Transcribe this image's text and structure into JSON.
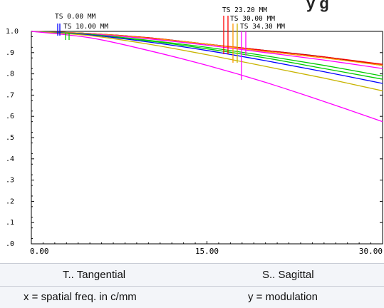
{
  "header_partial_title": "y   g",
  "legend": {
    "ts_label": "T.. Tangential",
    "s_label": "S.. Sagittal",
    "x_label": "x = spatial freq. in c/mm",
    "y_label": "y = modulation"
  },
  "chart_data": {
    "type": "line",
    "xlabel": "",
    "ylabel": "",
    "xlim": [
      0,
      30
    ],
    "ylim": [
      0,
      1
    ],
    "x_ticks": [
      "0.00",
      "15.00",
      "30.00"
    ],
    "y_ticks": [
      ".0",
      ".1",
      ".2",
      ".3",
      ".4",
      ".5",
      ".6",
      ".7",
      ".8",
      ".9",
      "1.0"
    ],
    "grid": false,
    "field_labels": [
      "TS 0.00 MM",
      "TS 10.00 MM",
      "TS 23.20 MM",
      "TS 30.00 MM",
      "TS 34.30 MM"
    ],
    "series": [
      {
        "color": "#000000",
        "x": [
          0,
          5,
          10,
          15,
          20,
          25,
          30
        ],
        "y": [
          1.0,
          0.99,
          0.97,
          0.94,
          0.91,
          0.88,
          0.84
        ]
      },
      {
        "color": "#ff0000",
        "x": [
          0,
          5,
          10,
          15,
          20,
          25,
          30
        ],
        "y": [
          1.0,
          0.99,
          0.97,
          0.94,
          0.91,
          0.88,
          0.845
        ]
      },
      {
        "color": "#ff9900",
        "x": [
          0,
          5,
          10,
          15,
          20,
          25,
          30
        ],
        "y": [
          1.0,
          0.99,
          0.968,
          0.94,
          0.905,
          0.875,
          0.84
        ]
      },
      {
        "color": "#ff00ff",
        "x": [
          0,
          5,
          10,
          15,
          20,
          25,
          30
        ],
        "y": [
          1.0,
          0.988,
          0.965,
          0.935,
          0.9,
          0.865,
          0.825
        ]
      },
      {
        "color": "#00cc00",
        "x": [
          0,
          5,
          10,
          15,
          20,
          25,
          30
        ],
        "y": [
          1.0,
          0.986,
          0.958,
          0.925,
          0.885,
          0.84,
          0.79
        ]
      },
      {
        "color": "#00cc00",
        "x": [
          0,
          5,
          10,
          15,
          20,
          25,
          30
        ],
        "y": [
          1.0,
          0.985,
          0.955,
          0.918,
          0.875,
          0.825,
          0.775
        ]
      },
      {
        "color": "#0000ff",
        "x": [
          0,
          5,
          10,
          15,
          20,
          25,
          30
        ],
        "y": [
          1.0,
          0.983,
          0.95,
          0.91,
          0.862,
          0.81,
          0.755
        ]
      },
      {
        "color": "#c8b400",
        "x": [
          0,
          5,
          10,
          15,
          20,
          25,
          30
        ],
        "y": [
          1.0,
          0.98,
          0.94,
          0.89,
          0.835,
          0.78,
          0.72
        ]
      },
      {
        "color": "#ff00ff",
        "x": [
          0,
          5,
          10,
          15,
          20,
          25,
          30
        ],
        "y": [
          1.0,
          0.97,
          0.91,
          0.84,
          0.76,
          0.67,
          0.575
        ]
      }
    ]
  },
  "colors": {
    "field_0": "#0000ff",
    "field_10": "#00cc00",
    "field_23": "#ff0000",
    "field_30_a": "#ff9900",
    "field_30_b": "#c8b400",
    "field_34": "#ff00ff"
  }
}
